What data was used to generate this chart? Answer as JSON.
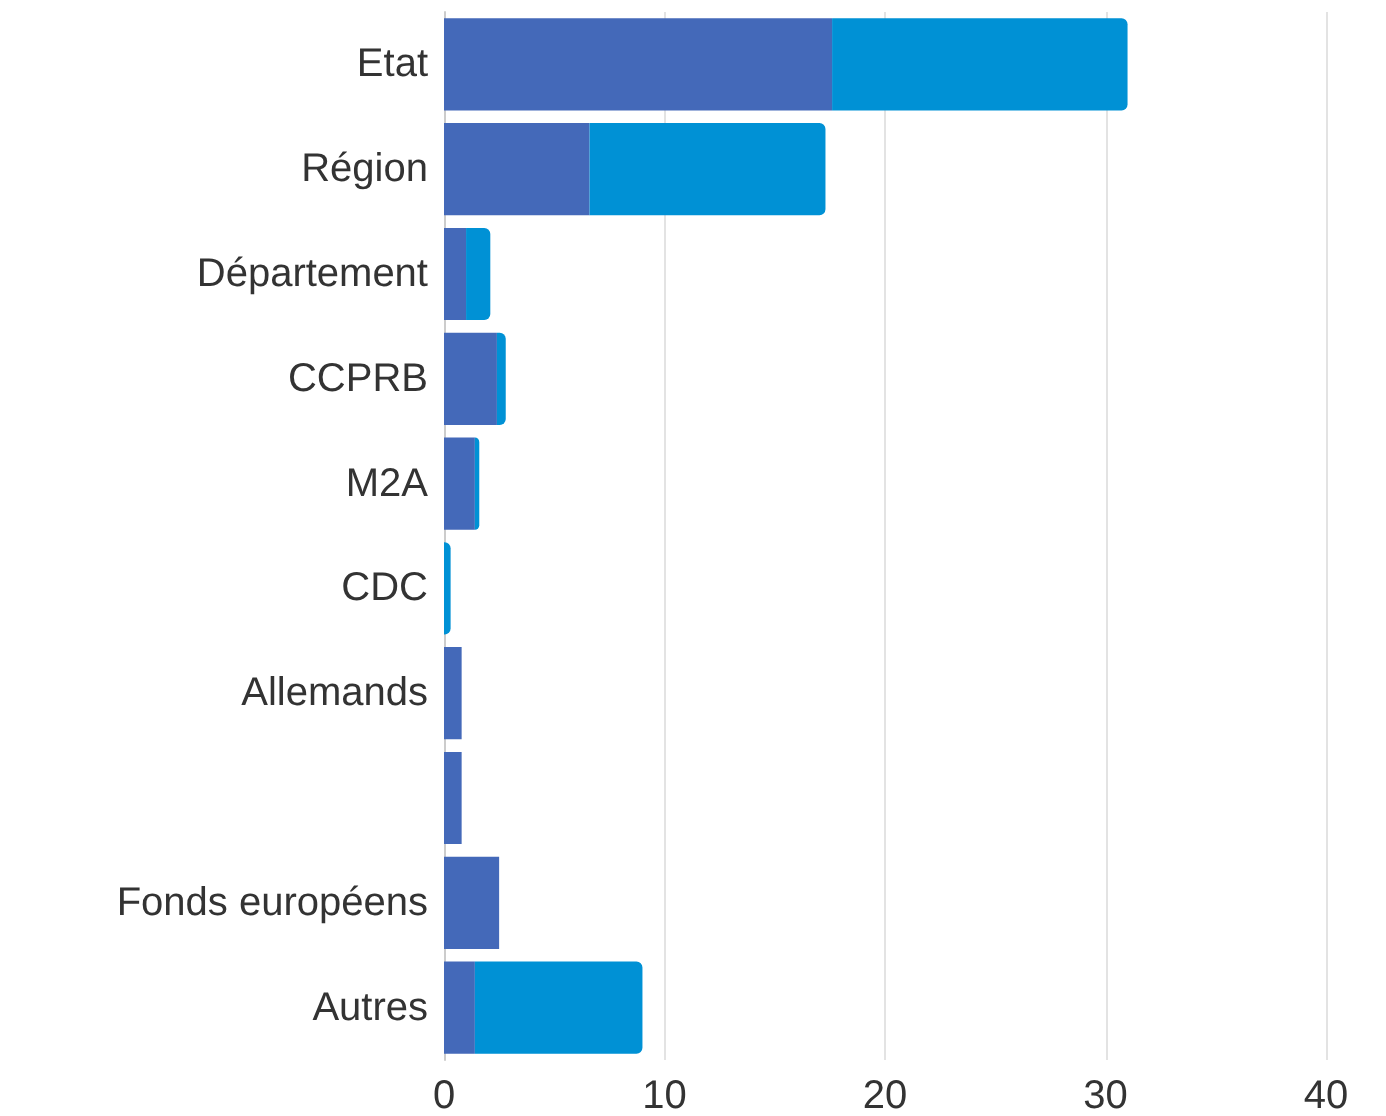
{
  "chart_data": {
    "type": "bar",
    "orientation": "horizontal",
    "stacked": true,
    "categories": [
      "Etat",
      "Région",
      "Département",
      "CCPRB",
      "M2A",
      "CDC",
      "Allemands",
      null,
      "Fonds européens",
      "Autres"
    ],
    "series": [
      {
        "color": "#4469b9",
        "values": [
          17.6,
          6.6,
          1.0,
          2.4,
          1.4,
          0,
          0.8,
          0.8,
          2.5,
          1.4
        ]
      },
      {
        "color": "#0091d5",
        "values": [
          13.4,
          10.7,
          1.1,
          0.4,
          0.2,
          0.3,
          0,
          0,
          0,
          7.6
        ]
      }
    ],
    "xlim": [
      0,
      40
    ],
    "xticks": [
      0,
      10,
      20,
      30,
      40
    ],
    "grid": "x"
  }
}
